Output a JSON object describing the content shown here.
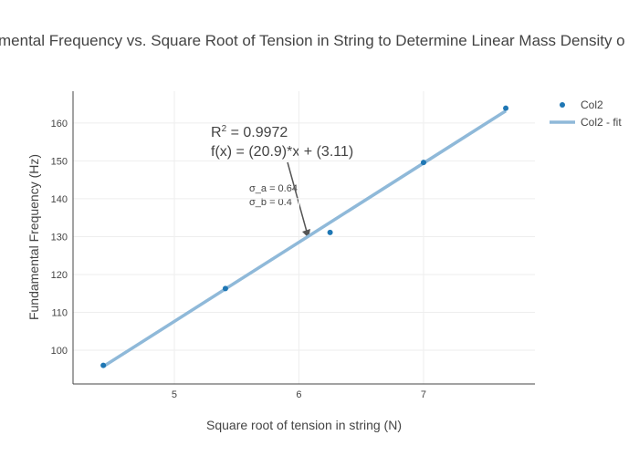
{
  "chart_data": {
    "type": "scatter",
    "title": "mental Frequency vs. Square Root of Tension in String to Determine Linear Mass Density o",
    "x_label": "Square root of tension in string (N)",
    "y_label": "Fundamental Frequency (Hz)",
    "xlim": [
      4.187,
      7.894
    ],
    "ylim": [
      91.1,
      168.4
    ],
    "xticks": [
      5,
      6,
      7
    ],
    "yticks": [
      100,
      110,
      120,
      130,
      140,
      150,
      160
    ],
    "grid": true,
    "legend": "top-right",
    "series": [
      {
        "name": "Col2",
        "type": "scatter",
        "color": "#1f77b4",
        "x": [
          4.43,
          5.41,
          6.25,
          7.0,
          7.66
        ],
        "values": [
          96.0,
          116.3,
          131.1,
          149.6,
          163.9
        ]
      },
      {
        "name": "Col2 - fit",
        "type": "line",
        "color": "#8fb9d9",
        "x": [
          4.43,
          7.66
        ],
        "values": [
          95.7,
          163.2
        ]
      }
    ],
    "annotations": {
      "r_symbol": "R",
      "r_exponent": "2",
      "r_value": " = 0.9972",
      "fit": "f(x) = (20.9)*x + (3.11)",
      "sigma_a": "σ_a = 0.64",
      "sigma_b": "σ_b = 0.4"
    }
  }
}
